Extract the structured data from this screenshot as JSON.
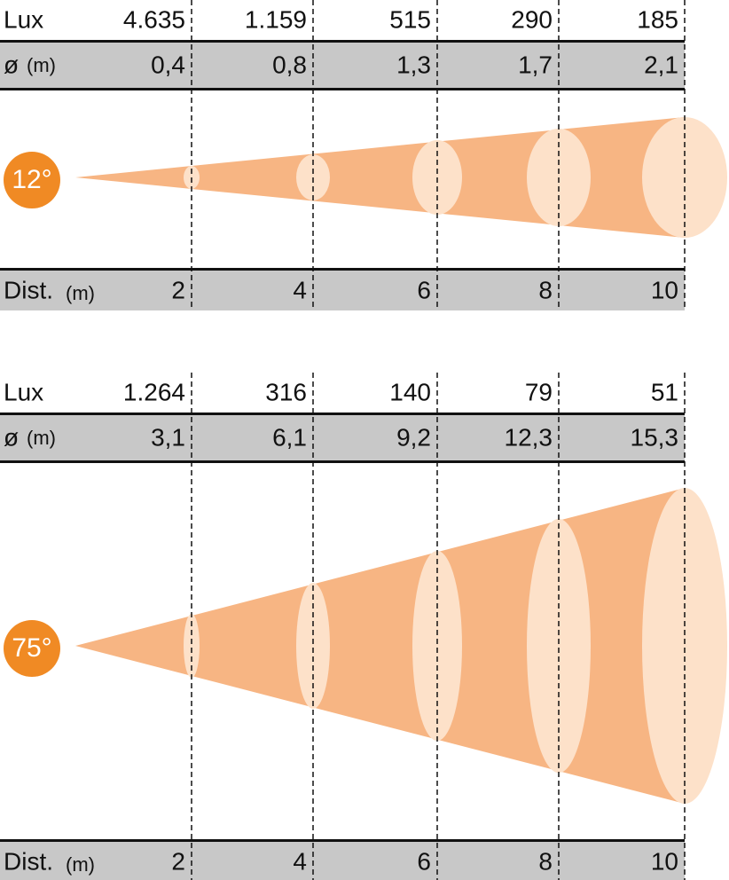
{
  "panels": [
    {
      "badge": "12°",
      "lux": {
        "label": "Lux",
        "values": [
          "4.635",
          "1.159",
          "515",
          "290",
          "185"
        ]
      },
      "diameter": {
        "label": "ø",
        "unit": "(m)",
        "values": [
          "0,4",
          "0,8",
          "1,3",
          "1,7",
          "2,1"
        ]
      },
      "distance": {
        "label": "Dist.",
        "unit": "(m)",
        "values": [
          "2",
          "4",
          "6",
          "8",
          "10"
        ]
      }
    },
    {
      "badge": "75°",
      "lux": {
        "label": "Lux",
        "values": [
          "1.264",
          "316",
          "140",
          "79",
          "51"
        ]
      },
      "diameter": {
        "label": "ø",
        "unit": "(m)",
        "values": [
          "3,1",
          "6,1",
          "9,2",
          "12,3",
          "15,3"
        ]
      },
      "distance": {
        "label": "Dist.",
        "unit": "(m)",
        "values": [
          "2",
          "4",
          "6",
          "8",
          "10"
        ]
      }
    }
  ]
}
